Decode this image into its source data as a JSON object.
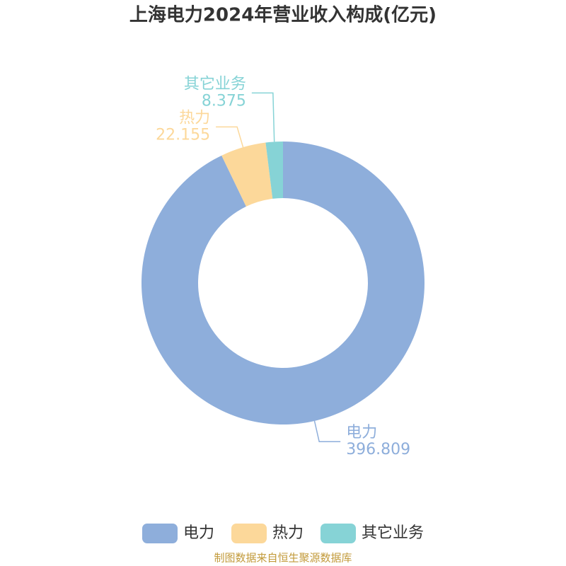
{
  "chart_data": {
    "type": "donut",
    "title": "上海电力2024年营业收入构成(亿元)",
    "source": "制图数据来自恒生聚源数据库",
    "categories": [
      "电力",
      "热力",
      "其它业务"
    ],
    "values": [
      396.809,
      22.155,
      8.375
    ],
    "colors": [
      "#8eaedb",
      "#fcd89a",
      "#86d3d6"
    ],
    "legend": "bottom"
  }
}
